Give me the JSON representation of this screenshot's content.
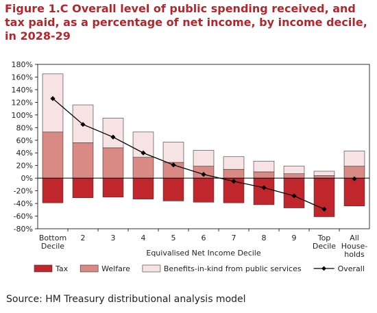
{
  "title": "Figure 1.C Overall level of public spending received, and tax paid, as a percentage of net income, by income decile, in 2028-29",
  "source": "Source: HM Treasury distributional analysis model",
  "colors": {
    "tax": "#c0272d",
    "welfare": "#d98a84",
    "benefits": "#f8e3e4",
    "overall": "#000000",
    "title": "#b2262c"
  },
  "chart_data": {
    "type": "bar",
    "stacked": true,
    "categories": [
      [
        "Bottom",
        "Decile"
      ],
      [
        "2"
      ],
      [
        "3"
      ],
      [
        "4"
      ],
      [
        "5"
      ],
      [
        "6"
      ],
      [
        "7"
      ],
      [
        "8"
      ],
      [
        "9"
      ],
      [
        "Top",
        "Decile"
      ],
      [
        "All",
        "House-",
        "holds"
      ]
    ],
    "xlabel": "Equivalised Net Income Decile",
    "ylabel": "",
    "ylim": [
      -80,
      180
    ],
    "yticks": [
      -80,
      -60,
      -40,
      -20,
      0,
      20,
      40,
      60,
      80,
      100,
      120,
      140,
      160,
      180
    ],
    "ytick_suffix": "%",
    "grid": false,
    "legend_position": "bottom",
    "series": [
      {
        "name": "Tax",
        "kind": "bar",
        "color": "#c0272d",
        "values": [
          -39,
          -31,
          -30,
          -33,
          -36,
          -38,
          -39,
          -42,
          -47,
          -61,
          -44
        ]
      },
      {
        "name": "Welfare",
        "kind": "bar",
        "color": "#d98a84",
        "values": [
          73,
          56,
          48,
          33,
          25,
          19,
          14,
          10,
          7,
          4,
          19
        ]
      },
      {
        "name": "Benefits-in-kind from public services",
        "kind": "bar",
        "color": "#f8e3e4",
        "values": [
          92,
          60,
          47,
          40,
          32,
          25,
          20,
          17,
          12,
          7,
          24
        ]
      },
      {
        "name": "Overall",
        "kind": "line",
        "color": "#000000",
        "values": [
          126,
          85,
          65,
          40,
          21,
          6,
          -5,
          -15,
          -28,
          -49,
          -1
        ]
      }
    ]
  }
}
